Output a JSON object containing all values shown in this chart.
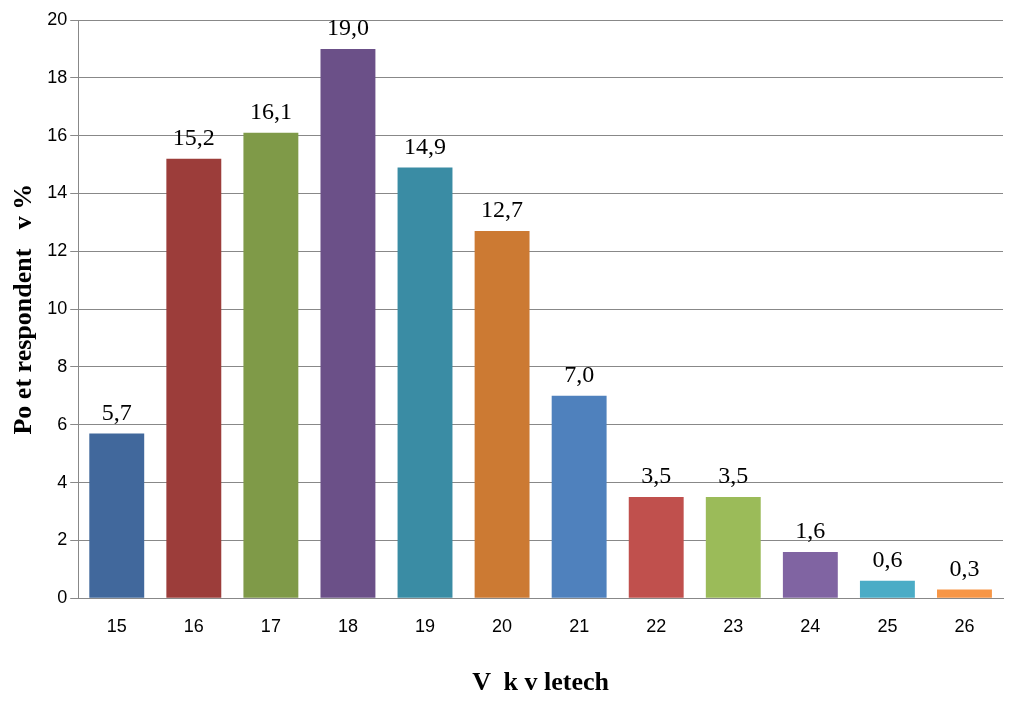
{
  "chart_data": {
    "type": "bar",
    "xlabel": "V  k v letech",
    "ylabel": "Po et respondent   v %",
    "categories": [
      "15",
      "16",
      "17",
      "18",
      "19",
      "20",
      "21",
      "22",
      "23",
      "24",
      "25",
      "26"
    ],
    "values": [
      5.7,
      15.2,
      16.1,
      19.0,
      14.9,
      12.7,
      7.0,
      3.5,
      3.5,
      1.6,
      0.6,
      0.3
    ],
    "colors": [
      "#41689c",
      "#9c3d3a",
      "#7f9a48",
      "#6b5088",
      "#3a8ca4",
      "#cc7a33",
      "#4f81bd",
      "#c0504d",
      "#9bbb59",
      "#8064a2",
      "#4bacc6",
      "#f79646"
    ],
    "value_labels": [
      "5,7",
      "15,2",
      "16,1",
      "19,0",
      "14,9",
      "12,7",
      "7,0",
      "3,5",
      "3,5",
      "1,6",
      "0,6",
      "0,3"
    ],
    "ylim": [
      0,
      20
    ],
    "yticks": [
      0,
      2,
      4,
      6,
      8,
      10,
      12,
      14,
      16,
      18,
      20
    ],
    "grid": "y"
  }
}
